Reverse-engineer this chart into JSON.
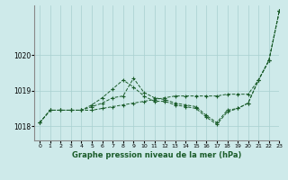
{
  "background_color": "#ceeaea",
  "grid_color": "#a8d0d0",
  "line_color": "#1a5c2a",
  "title": "Graphe pression niveau de la mer (hPa)",
  "xlim": [
    -0.5,
    23
  ],
  "ylim": [
    1017.6,
    1021.4
  ],
  "yticks": [
    1018,
    1019,
    1020
  ],
  "xticks": [
    0,
    1,
    2,
    3,
    4,
    5,
    6,
    7,
    8,
    9,
    10,
    11,
    12,
    13,
    14,
    15,
    16,
    17,
    18,
    19,
    20,
    21,
    22,
    23
  ],
  "series": [
    [
      1018.1,
      1018.45,
      1018.45,
      1018.45,
      1018.45,
      1018.55,
      1018.65,
      1018.8,
      1018.85,
      1019.35,
      1018.95,
      1018.8,
      1018.75,
      1018.65,
      1018.6,
      1018.55,
      1018.3,
      1018.1,
      1018.45,
      1018.5,
      1018.65,
      1019.3,
      1019.85,
      1021.25
    ],
    [
      1018.1,
      1018.45,
      1018.45,
      1018.45,
      1018.45,
      1018.6,
      1018.8,
      1019.05,
      1019.3,
      1019.1,
      1018.85,
      1018.7,
      1018.7,
      1018.6,
      1018.55,
      1018.5,
      1018.25,
      1018.05,
      1018.4,
      1018.5,
      1018.65,
      1019.3,
      1019.85,
      1021.25
    ],
    [
      1018.1,
      1018.45,
      1018.45,
      1018.45,
      1018.45,
      1018.45,
      1018.5,
      1018.55,
      1018.6,
      1018.65,
      1018.7,
      1018.75,
      1018.8,
      1018.85,
      1018.85,
      1018.85,
      1018.85,
      1018.85,
      1018.9,
      1018.9,
      1018.9,
      1019.3,
      1019.85,
      1021.25
    ]
  ]
}
